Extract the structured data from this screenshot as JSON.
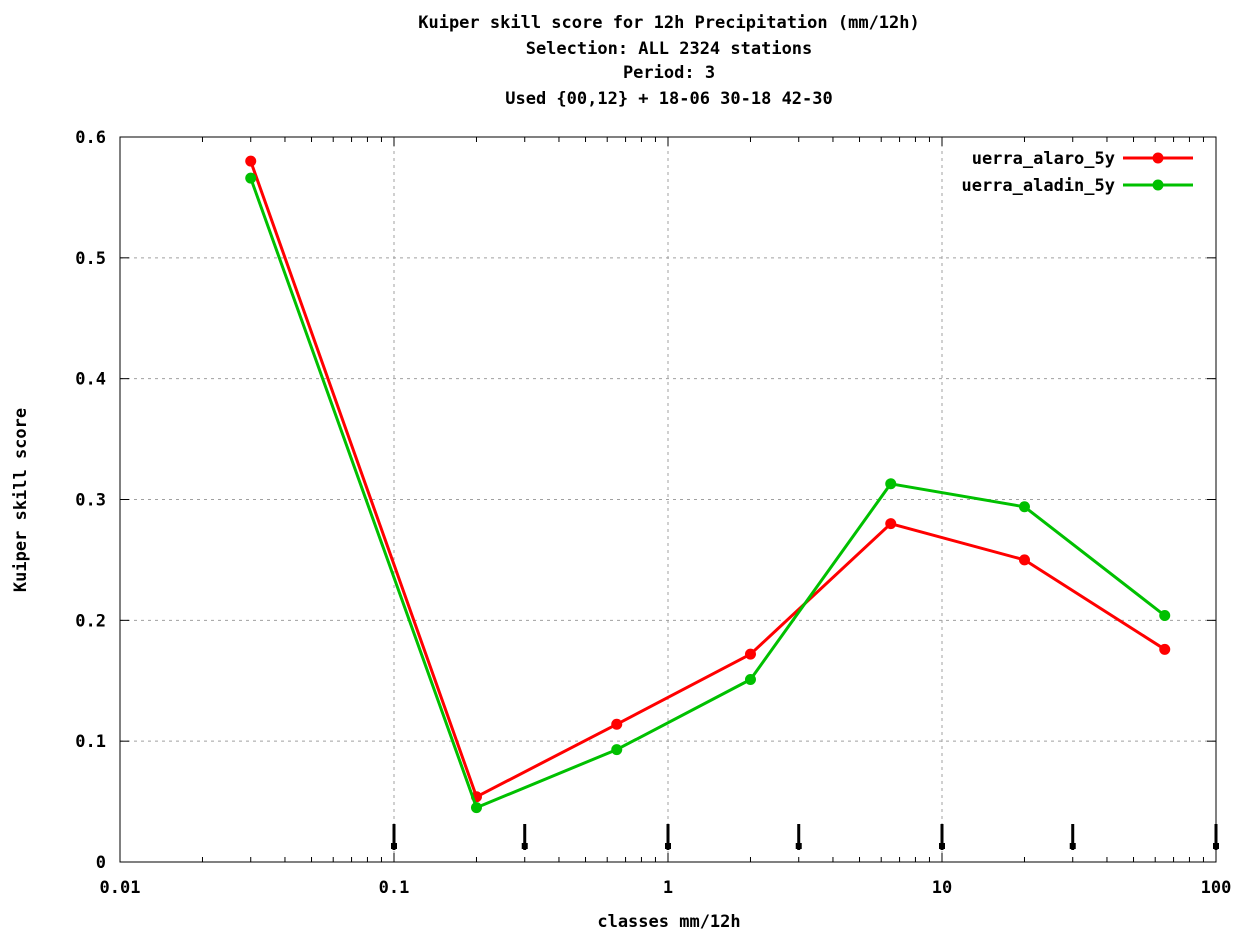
{
  "chart_data": {
    "type": "line",
    "title_lines": [
      "Kuiper skill score  for 12h Precipitation (mm/12h)",
      "Selection: ALL   2324 stations",
      "Period:        3",
      "Used {00,12} + 18-06 30-18 42-30"
    ],
    "xlabel": "classes mm/12h",
    "ylabel": "Kuiper skill score",
    "xscale": "log",
    "xlim": [
      0.01,
      100
    ],
    "ylim": [
      0,
      0.6
    ],
    "xticks": [
      0.01,
      0.1,
      1,
      10,
      100
    ],
    "xtick_labels": [
      "0.01",
      "0.1",
      "1",
      "10",
      "100"
    ],
    "yticks": [
      0,
      0.1,
      0.2,
      0.3,
      0.4,
      0.5,
      0.6
    ],
    "ytick_labels": [
      "0",
      "0.1",
      "0.2",
      "0.3",
      "0.4",
      "0.5",
      "0.6"
    ],
    "grid": true,
    "legend_position": "top-right",
    "class_limit_markers": [
      0.1,
      0.3,
      1,
      3,
      10,
      30,
      100
    ],
    "x": [
      0.03,
      0.2,
      0.65,
      2,
      6.5,
      20,
      65
    ],
    "series": [
      {
        "name": "uerra_alaro_5y",
        "color": "#ff0000",
        "values": [
          0.58,
          0.054,
          0.114,
          0.172,
          0.28,
          0.25,
          0.176
        ]
      },
      {
        "name": "uerra_aladin_5y",
        "color": "#00c000",
        "values": [
          0.566,
          0.045,
          0.093,
          0.151,
          0.313,
          0.294,
          0.204
        ]
      }
    ]
  }
}
